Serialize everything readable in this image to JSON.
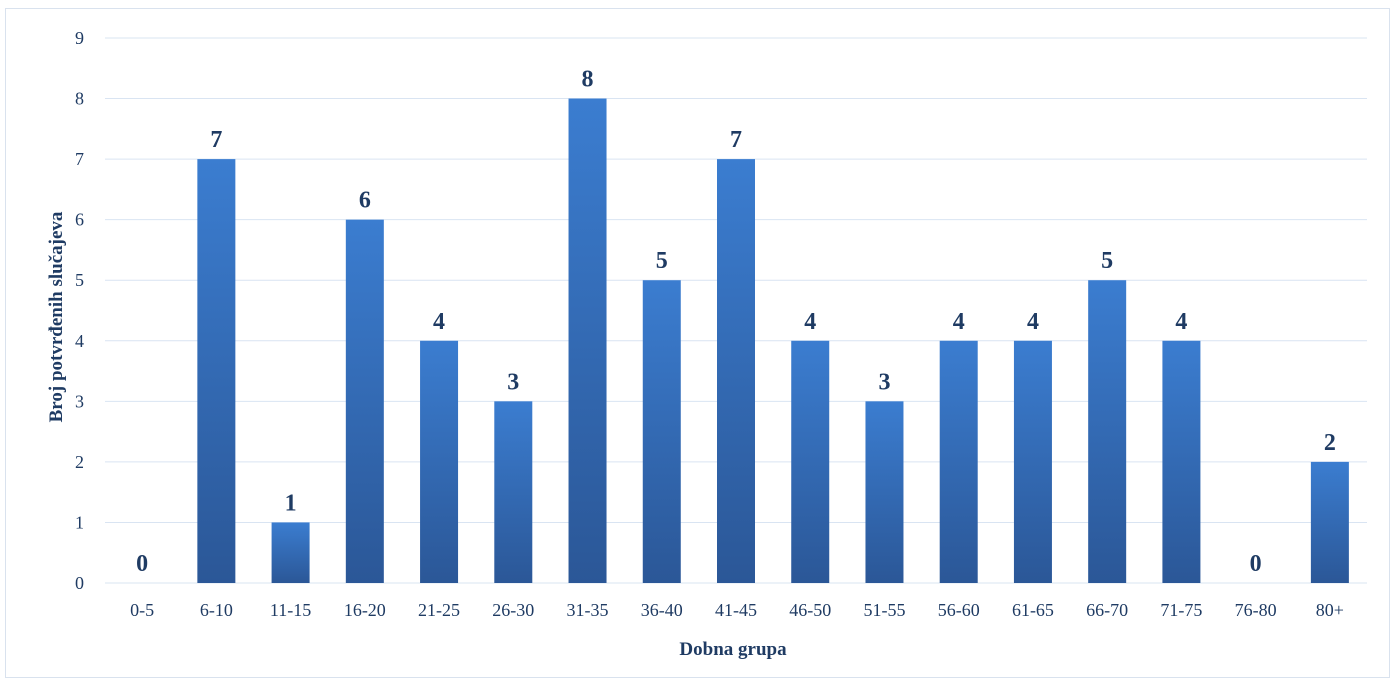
{
  "chart_data": {
    "type": "bar",
    "title": "",
    "xlabel": "Dobna grupa",
    "ylabel": "Broj potvrđenih slučajeva",
    "categories": [
      "0-5",
      "6-10",
      "11-15",
      "16-20",
      "21-25",
      "26-30",
      "31-35",
      "36-40",
      "41-45",
      "46-50",
      "51-55",
      "56-60",
      "61-65",
      "66-70",
      "71-75",
      "76-80",
      "80+"
    ],
    "values": [
      0,
      7,
      1,
      6,
      4,
      3,
      8,
      5,
      7,
      4,
      3,
      4,
      4,
      5,
      4,
      0,
      2
    ],
    "yticks": [
      "0",
      "1",
      "2",
      "3",
      "4",
      "5",
      "6",
      "7",
      "8",
      "9"
    ],
    "ylim": [
      0,
      9
    ],
    "grid": true,
    "legend": "none",
    "colors": {
      "bar_top": "#3b7dd0",
      "bar_bottom": "#2b5797",
      "gridline": "#d9e4f2",
      "text": "#1f3b63"
    }
  }
}
